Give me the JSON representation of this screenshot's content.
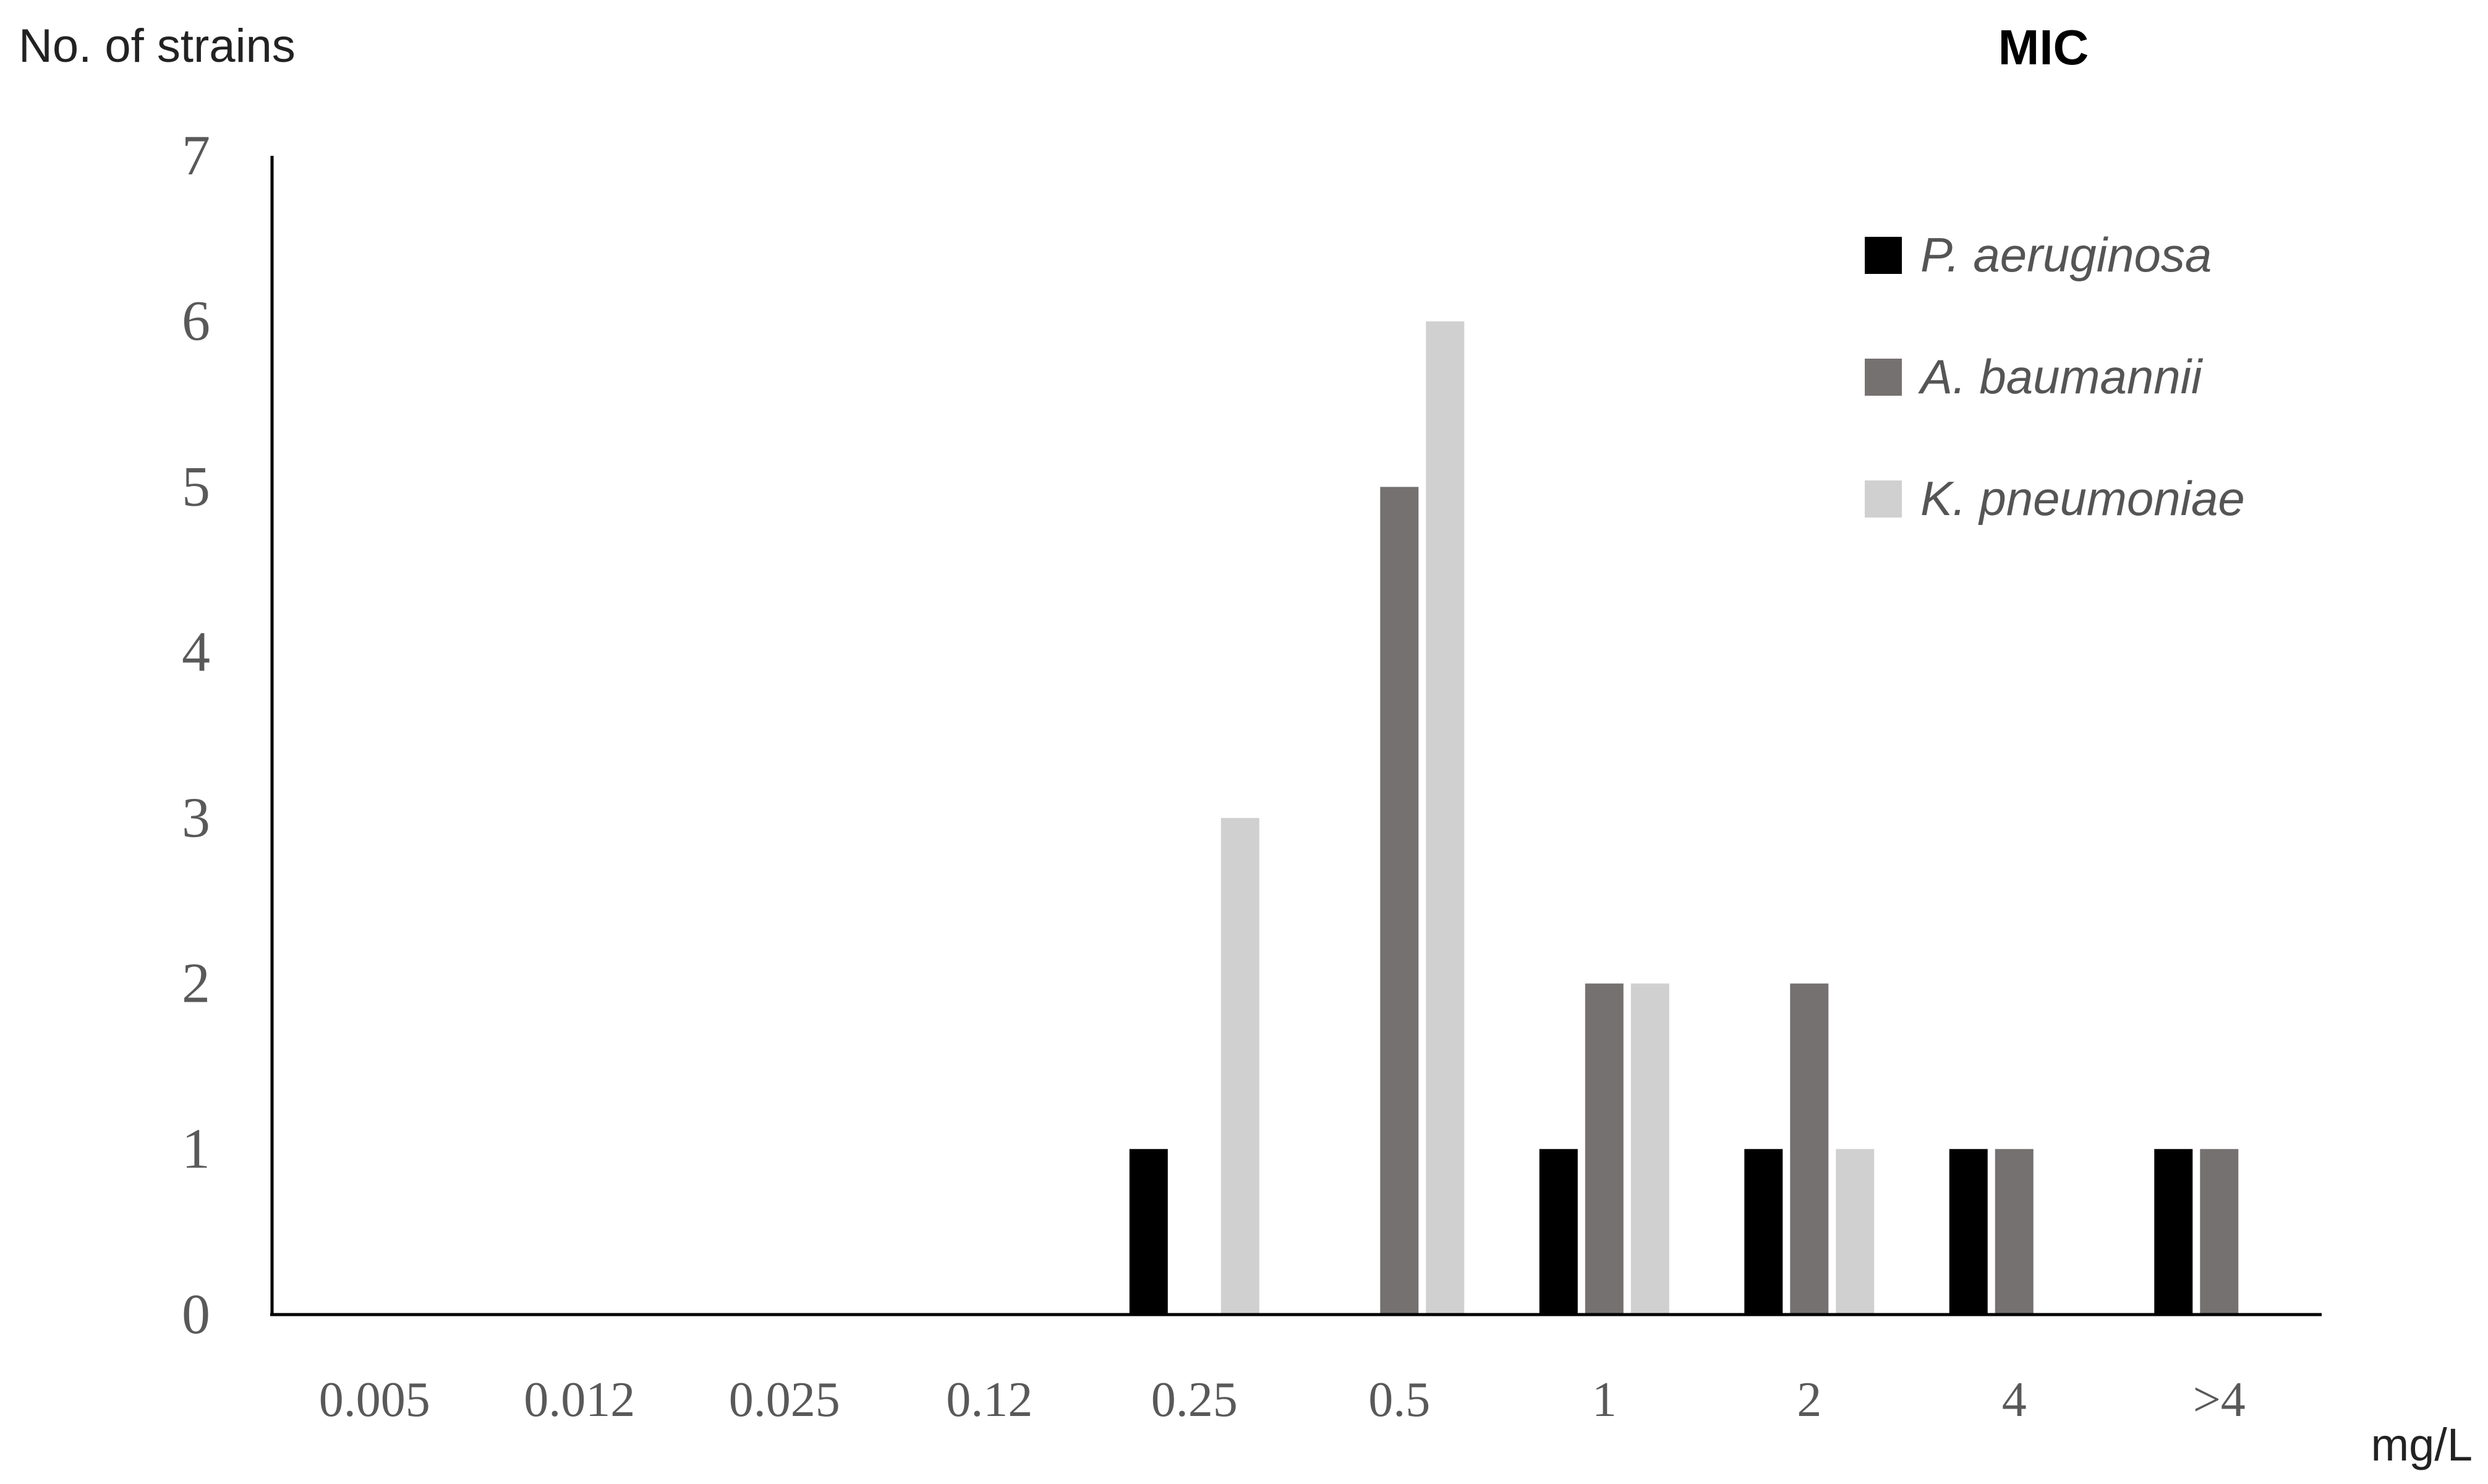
{
  "chart_data": {
    "type": "bar",
    "title": "MIC",
    "ylabel": "No. of strains",
    "xlabel": "mg/L",
    "ylim": [
      0,
      7
    ],
    "yticks": [
      "0",
      "1",
      "2",
      "3",
      "4",
      "5",
      "6",
      "7"
    ],
    "grid": false,
    "legend_position": "top-right",
    "categories": [
      "0.005",
      "0.012",
      "0.025",
      "0.12",
      "0.25",
      "0.5",
      "1",
      "2",
      "4",
      ">4"
    ],
    "series": [
      {
        "name": "P. aeruginosa",
        "color": "#000000",
        "values": [
          0,
          0,
          0,
          0,
          1,
          0,
          1,
          1,
          1,
          1
        ]
      },
      {
        "name": "A. baumannii",
        "color": "#767171",
        "values": [
          0,
          0,
          0,
          0,
          0,
          5,
          2,
          2,
          1,
          1
        ]
      },
      {
        "name": "K. pneumoniae",
        "color": "#d0d0d0",
        "values": [
          0,
          0,
          0,
          0,
          3,
          6,
          2,
          1,
          0,
          0
        ]
      }
    ]
  }
}
